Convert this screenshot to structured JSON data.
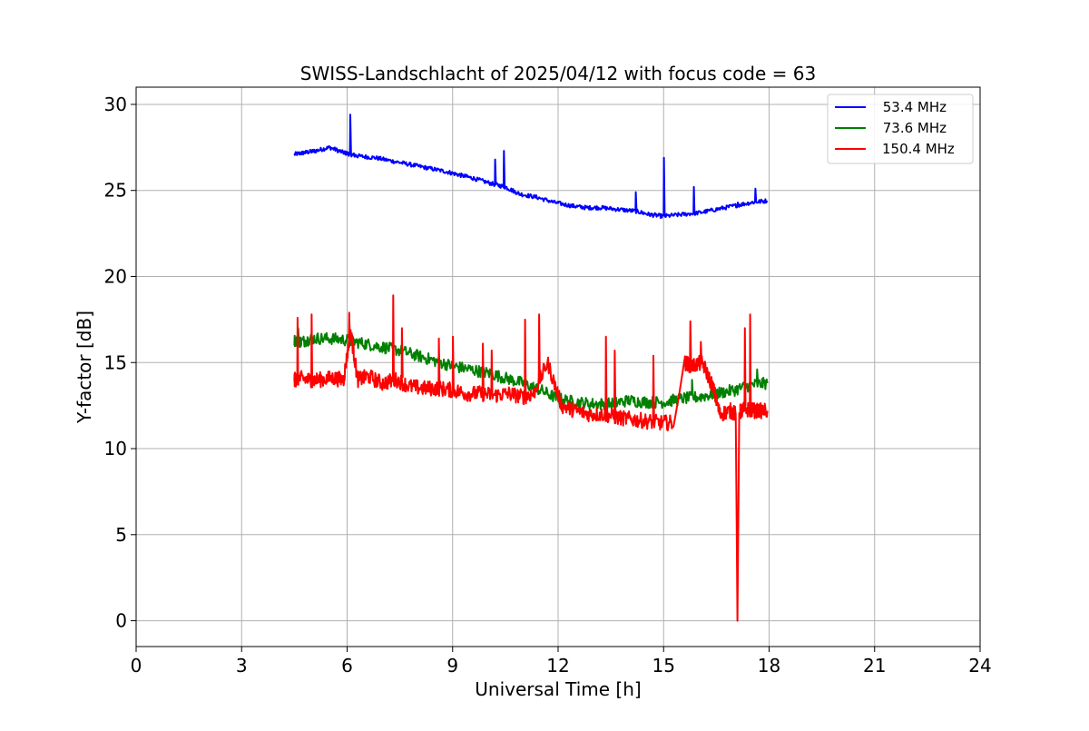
{
  "chart_data": {
    "type": "line",
    "title": "SWISS-Landschlacht of 2025/04/12 with focus code = 63",
    "xlabel": "Universal Time [h]",
    "ylabel": "Y-factor [dB]",
    "xlim": [
      0,
      24
    ],
    "ylim": [
      -1.5,
      31
    ],
    "xticks": [
      0,
      3,
      6,
      9,
      12,
      15,
      18,
      21,
      24
    ],
    "yticks": [
      0,
      5,
      10,
      15,
      20,
      25,
      30
    ],
    "xtick_labels": [
      "0",
      "3",
      "6",
      "9",
      "12",
      "15",
      "18",
      "21",
      "24"
    ],
    "ytick_labels": [
      "0",
      "5",
      "10",
      "15",
      "20",
      "25",
      "30"
    ],
    "grid": true,
    "legend_position": "top-right",
    "series": [
      {
        "name": " 53.4 MHz",
        "color": "#0000ff",
        "x": [
          4.5,
          4.8,
          5.1,
          5.5,
          5.9,
          6.1,
          6.3,
          6.8,
          7.3,
          7.8,
          8.3,
          8.8,
          9.2,
          9.6,
          10.1,
          10.5,
          10.9,
          11.4,
          11.9,
          12.4,
          12.8,
          13.2,
          13.7,
          14.2,
          14.6,
          15.0,
          15.5,
          16.0,
          16.5,
          17.0,
          17.5,
          17.95
        ],
        "y": [
          27.1,
          27.2,
          27.3,
          27.5,
          27.2,
          27.1,
          27.0,
          26.9,
          26.7,
          26.5,
          26.3,
          26.1,
          25.9,
          25.7,
          25.4,
          25.2,
          24.8,
          24.6,
          24.3,
          24.1,
          24.0,
          24.0,
          23.9,
          23.8,
          23.6,
          23.5,
          23.6,
          23.7,
          23.9,
          24.1,
          24.3,
          24.4
        ],
        "spikes": [
          [
            6.08,
            29.4
          ],
          [
            10.2,
            26.8
          ],
          [
            10.45,
            27.3
          ],
          [
            14.2,
            24.9
          ],
          [
            15.0,
            26.9
          ],
          [
            15.85,
            25.2
          ],
          [
            17.6,
            25.1
          ],
          [
            17.1,
            24.3
          ]
        ]
      },
      {
        "name": " 73.6 MHz",
        "color": "#008000",
        "x": [
          4.5,
          4.7,
          5.0,
          5.5,
          6.0,
          6.5,
          7.0,
          7.5,
          8.0,
          8.5,
          9.0,
          9.5,
          10.0,
          10.5,
          11.0,
          11.5,
          12.0,
          12.5,
          13.0,
          13.5,
          14.0,
          14.5,
          15.0,
          15.5,
          16.0,
          16.5,
          17.0,
          17.5,
          17.95
        ],
        "y": [
          16.3,
          16.2,
          16.4,
          16.4,
          16.3,
          16.1,
          15.9,
          15.7,
          15.4,
          15.1,
          14.8,
          14.6,
          14.4,
          14.1,
          13.8,
          13.4,
          12.9,
          12.7,
          12.6,
          12.6,
          12.8,
          12.7,
          12.7,
          12.9,
          13.0,
          13.2,
          13.4,
          13.7,
          13.8
        ],
        "spikes": [
          [
            4.6,
            17.0
          ],
          [
            15.8,
            14.0
          ],
          [
            17.65,
            14.6
          ]
        ]
      },
      {
        "name": "150.4 MHz",
        "color": "#ff0000",
        "x": [
          4.5,
          4.6,
          4.9,
          5.2,
          5.6,
          5.9,
          6.1,
          6.3,
          6.6,
          7.0,
          7.4,
          7.8,
          8.2,
          8.6,
          9.0,
          9.4,
          9.8,
          10.2,
          10.6,
          11.0,
          11.3,
          11.7,
          12.1,
          12.5,
          12.9,
          13.3,
          13.7,
          14.1,
          14.5,
          14.9,
          15.3,
          15.6,
          15.8,
          16.1,
          16.4,
          16.6,
          16.9,
          17.05,
          17.1,
          17.15,
          17.3,
          17.6,
          17.95
        ],
        "y": [
          14.0,
          14.1,
          14.0,
          14.0,
          14.1,
          14.0,
          16.8,
          14.0,
          14.2,
          13.8,
          14.0,
          13.6,
          13.5,
          13.5,
          13.4,
          13.2,
          13.2,
          13.1,
          13.2,
          13.0,
          13.2,
          15.0,
          12.5,
          12.2,
          12.0,
          12.0,
          11.8,
          11.7,
          11.6,
          11.5,
          11.5,
          15.0,
          14.8,
          15.0,
          13.6,
          12.0,
          12.2,
          12.0,
          0.0,
          12.1,
          12.3,
          12.2,
          12.2
        ],
        "spikes": [
          [
            4.58,
            17.6
          ],
          [
            4.98,
            17.8
          ],
          [
            6.05,
            17.9
          ],
          [
            7.3,
            18.9
          ],
          [
            7.55,
            17.0
          ],
          [
            8.6,
            16.4
          ],
          [
            9.0,
            16.5
          ],
          [
            9.85,
            16.1
          ],
          [
            10.1,
            15.7
          ],
          [
            11.05,
            17.5
          ],
          [
            11.45,
            17.8
          ],
          [
            13.35,
            16.5
          ],
          [
            13.6,
            15.7
          ],
          [
            14.7,
            15.4
          ],
          [
            15.75,
            17.4
          ],
          [
            16.05,
            16.2
          ],
          [
            17.3,
            17.0
          ],
          [
            17.45,
            17.8
          ]
        ]
      }
    ]
  }
}
